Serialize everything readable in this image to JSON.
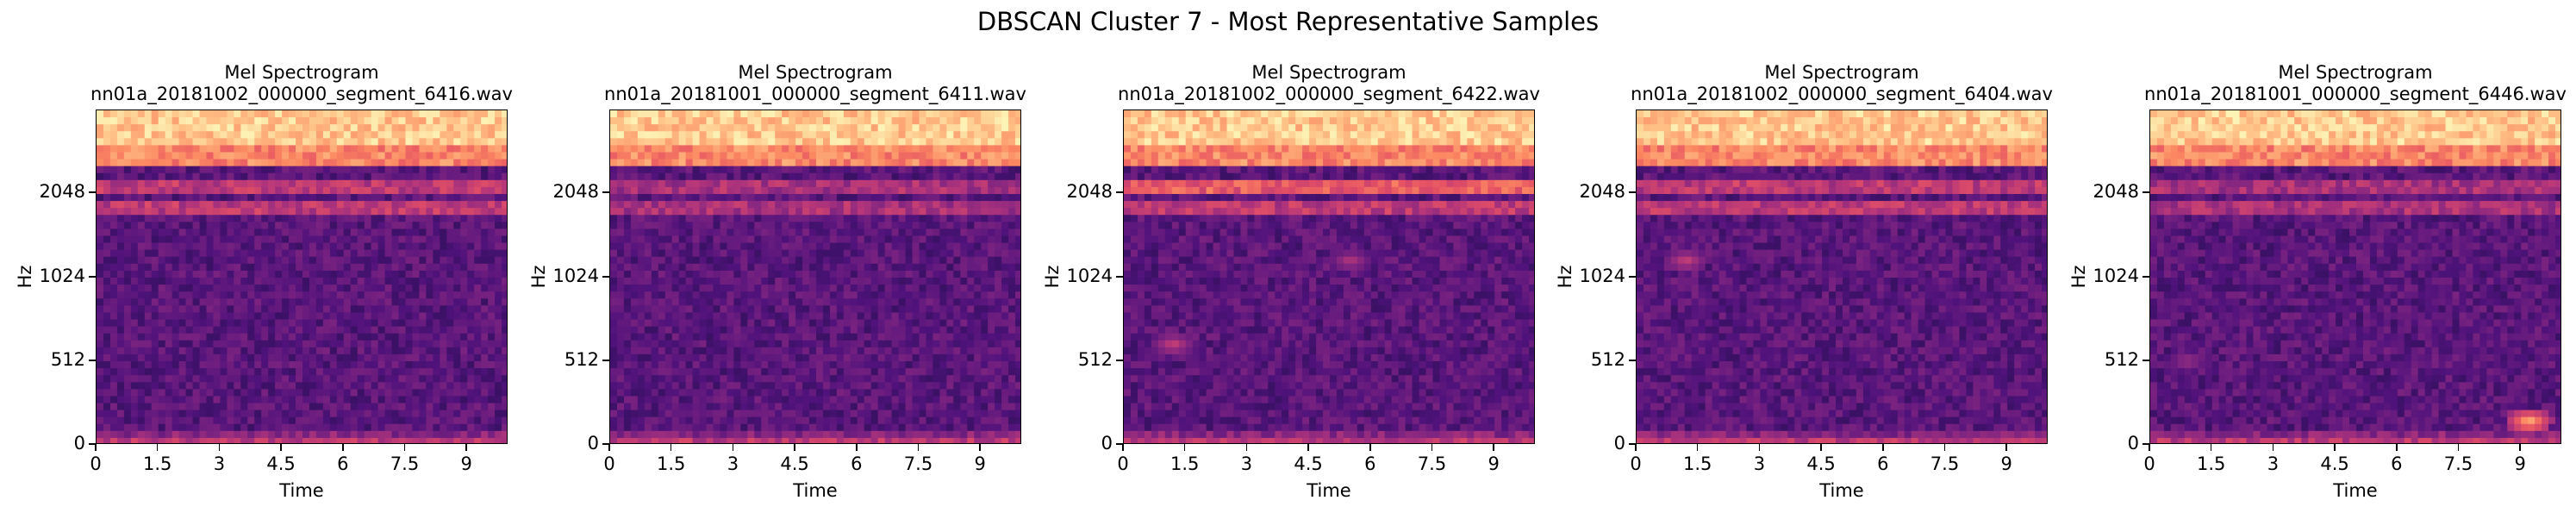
{
  "figure": {
    "title": "DBSCAN Cluster 7 - Most Representative Samples",
    "colormap": "magma"
  },
  "chart_data": [
    {
      "type": "heatmap",
      "title": "Mel Spectrogram",
      "subtitle": "nn01a_20181002_000000_segment_6416.wav",
      "xlabel": "Time",
      "ylabel": "Hz",
      "xticks": [
        "0",
        "1.5",
        "3",
        "4.5",
        "6",
        "7.5",
        "9"
      ],
      "xtick_values": [
        0,
        1.5,
        3,
        4.5,
        6,
        7.5,
        9
      ],
      "yticks": [
        "0",
        "512",
        "1024",
        "2048"
      ],
      "xlim": [
        0,
        10
      ],
      "yscale": "mel",
      "bands": [
        {
          "level": 0.92,
          "from": 0.9,
          "to": 1.0
        },
        {
          "level": 0.78,
          "from": 0.83,
          "to": 0.9
        },
        {
          "level": 0.55,
          "from": 0.76,
          "to": 0.8
        },
        {
          "level": 0.55,
          "from": 0.68,
          "to": 0.72
        }
      ],
      "blobs": []
    },
    {
      "type": "heatmap",
      "title": "Mel Spectrogram",
      "subtitle": "nn01a_20181001_000000_segment_6411.wav",
      "xlabel": "Time",
      "ylabel": "Hz",
      "xticks": [
        "0",
        "1.5",
        "3",
        "4.5",
        "6",
        "7.5",
        "9"
      ],
      "xtick_values": [
        0,
        1.5,
        3,
        4.5,
        6,
        7.5,
        9
      ],
      "yticks": [
        "0",
        "512",
        "1024",
        "2048"
      ],
      "xlim": [
        0,
        10
      ],
      "yscale": "mel",
      "bands": [
        {
          "level": 0.92,
          "from": 0.9,
          "to": 1.0
        },
        {
          "level": 0.78,
          "from": 0.83,
          "to": 0.9
        },
        {
          "level": 0.5,
          "from": 0.76,
          "to": 0.8
        },
        {
          "level": 0.5,
          "from": 0.68,
          "to": 0.72
        }
      ],
      "blobs": []
    },
    {
      "type": "heatmap",
      "title": "Mel Spectrogram",
      "subtitle": "nn01a_20181002_000000_segment_6422.wav",
      "xlabel": "Time",
      "ylabel": "Hz",
      "xticks": [
        "0",
        "1.5",
        "3",
        "4.5",
        "6",
        "7.5",
        "9"
      ],
      "xtick_values": [
        0,
        1.5,
        3,
        4.5,
        6,
        7.5,
        9
      ],
      "yticks": [
        "0",
        "512",
        "1024",
        "2048"
      ],
      "xlim": [
        0,
        10
      ],
      "yscale": "mel",
      "bands": [
        {
          "level": 0.92,
          "from": 0.9,
          "to": 1.0
        },
        {
          "level": 0.78,
          "from": 0.83,
          "to": 0.9
        },
        {
          "level": 0.68,
          "from": 0.75,
          "to": 0.8
        },
        {
          "level": 0.55,
          "from": 0.68,
          "to": 0.72
        }
      ],
      "blobs": [
        {
          "t": 5.5,
          "f": 0.55,
          "level": 0.5
        },
        {
          "t": 1.2,
          "f": 0.3,
          "level": 0.55
        }
      ]
    },
    {
      "type": "heatmap",
      "title": "Mel Spectrogram",
      "subtitle": "nn01a_20181002_000000_segment_6404.wav",
      "xlabel": "Time",
      "ylabel": "Hz",
      "xticks": [
        "0",
        "1.5",
        "3",
        "4.5",
        "6",
        "7.5",
        "9"
      ],
      "xtick_values": [
        0,
        1.5,
        3,
        4.5,
        6,
        7.5,
        9
      ],
      "yticks": [
        "0",
        "512",
        "1024",
        "2048"
      ],
      "xlim": [
        0,
        10
      ],
      "yscale": "mel",
      "bands": [
        {
          "level": 0.92,
          "from": 0.9,
          "to": 1.0
        },
        {
          "level": 0.78,
          "from": 0.83,
          "to": 0.9
        },
        {
          "level": 0.55,
          "from": 0.76,
          "to": 0.8
        },
        {
          "level": 0.55,
          "from": 0.68,
          "to": 0.72
        }
      ],
      "blobs": [
        {
          "t": 1.2,
          "f": 0.55,
          "level": 0.55
        }
      ]
    },
    {
      "type": "heatmap",
      "title": "Mel Spectrogram",
      "subtitle": "nn01a_20181001_000000_segment_6446.wav",
      "xlabel": "Time",
      "ylabel": "Hz",
      "xticks": [
        "0",
        "1.5",
        "3",
        "4.5",
        "6",
        "7.5",
        "9"
      ],
      "xtick_values": [
        0,
        1.5,
        3,
        4.5,
        6,
        7.5,
        9
      ],
      "yticks": [
        "0",
        "512",
        "1024",
        "2048"
      ],
      "xlim": [
        0,
        10
      ],
      "yscale": "mel",
      "bands": [
        {
          "level": 0.92,
          "from": 0.9,
          "to": 1.0
        },
        {
          "level": 0.78,
          "from": 0.83,
          "to": 0.9
        },
        {
          "level": 0.5,
          "from": 0.76,
          "to": 0.8
        },
        {
          "level": 0.5,
          "from": 0.68,
          "to": 0.72
        }
      ],
      "blobs": [
        {
          "t": 9.2,
          "f": 0.07,
          "level": 0.85
        },
        {
          "t": 0.9,
          "f": 0.25,
          "level": 0.45
        }
      ]
    }
  ]
}
